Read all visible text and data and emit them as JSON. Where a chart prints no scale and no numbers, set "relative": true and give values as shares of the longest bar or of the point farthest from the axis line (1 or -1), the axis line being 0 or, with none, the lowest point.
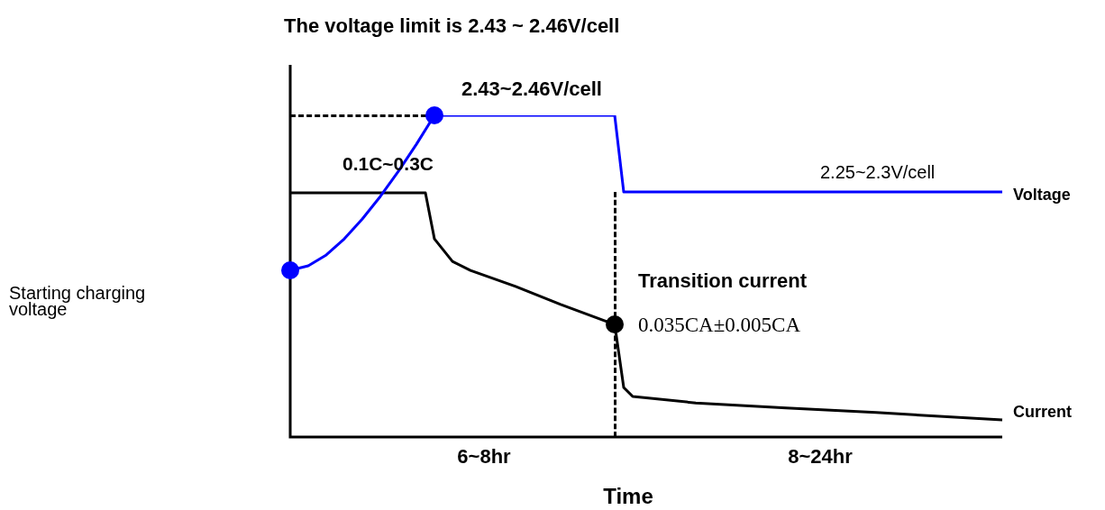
{
  "chart_data": {
    "type": "line",
    "title": "The voltage limit is 2.43 ~ 2.46V/cell",
    "xlabel": "Time",
    "relative": true,
    "legend": false,
    "marker": "none",
    "categories": [
      null,
      null,
      null,
      null,
      null,
      null,
      null,
      null,
      null,
      null,
      null,
      null,
      null,
      null,
      null,
      null,
      null,
      null,
      null,
      null,
      null,
      null,
      null,
      null,
      null,
      null,
      null,
      null,
      null,
      null,
      null,
      null,
      null,
      null,
      null,
      null,
      null,
      null,
      null,
      null,
      null,
      null,
      null,
      null,
      null,
      null,
      null,
      null,
      null,
      null,
      null,
      null,
      null,
      null,
      null,
      null,
      null,
      null,
      null,
      null,
      null,
      null,
      null,
      null,
      null,
      null,
      null,
      null,
      null,
      null,
      null,
      null,
      null,
      null,
      null,
      null,
      null,
      null,
      null,
      null
    ],
    "series": [
      {
        "name": "Voltage",
        "color": "#0000ff",
        "values": [
          0.518,
          null,
          0.532,
          null,
          0.566,
          null,
          0.616,
          null,
          0.678,
          null,
          0.748,
          null,
          0.826,
          null,
          0.91,
          null,
          1.0,
          null,
          null,
          null,
          null,
          null,
          null,
          null,
          null,
          null,
          null,
          null,
          null,
          null,
          null,
          null,
          null,
          null,
          null,
          null,
          1.0,
          0.762,
          null,
          null,
          null,
          null,
          null,
          null,
          null,
          null,
          null,
          null,
          null,
          null,
          null,
          null,
          null,
          null,
          null,
          null,
          null,
          null,
          null,
          null,
          null,
          null,
          null,
          null,
          null,
          null,
          null,
          null,
          null,
          null,
          null,
          null,
          null,
          null,
          null,
          null,
          null,
          null,
          null,
          0.762
        ]
      },
      {
        "name": "Current",
        "color": "#000000",
        "values": [
          0.759,
          null,
          null,
          null,
          null,
          null,
          null,
          null,
          null,
          null,
          null,
          null,
          null,
          null,
          null,
          0.759,
          0.616,
          null,
          0.546,
          null,
          0.518,
          null,
          null,
          null,
          null,
          0.468,
          null,
          null,
          null,
          null,
          0.412,
          null,
          null,
          null,
          null,
          null,
          0.35,
          0.154,
          0.126,
          null,
          null,
          null,
          null,
          null,
          null,
          0.106,
          null,
          null,
          null,
          null,
          null,
          null,
          null,
          null,
          null,
          0.09,
          null,
          null,
          null,
          null,
          null,
          null,
          null,
          null,
          null,
          0.076,
          null,
          null,
          null,
          null,
          null,
          null,
          null,
          null,
          null,
          null,
          null,
          null,
          null,
          0.053
        ]
      }
    ],
    "annotations": [
      "2.43~2.46V/cell",
      "0.1C~0.3C",
      "2.25~2.3V/cell",
      "Transition current",
      "0.035CA±0.005CA",
      "Starting charging voltage",
      "6~8hr",
      "8~24hr"
    ]
  }
}
